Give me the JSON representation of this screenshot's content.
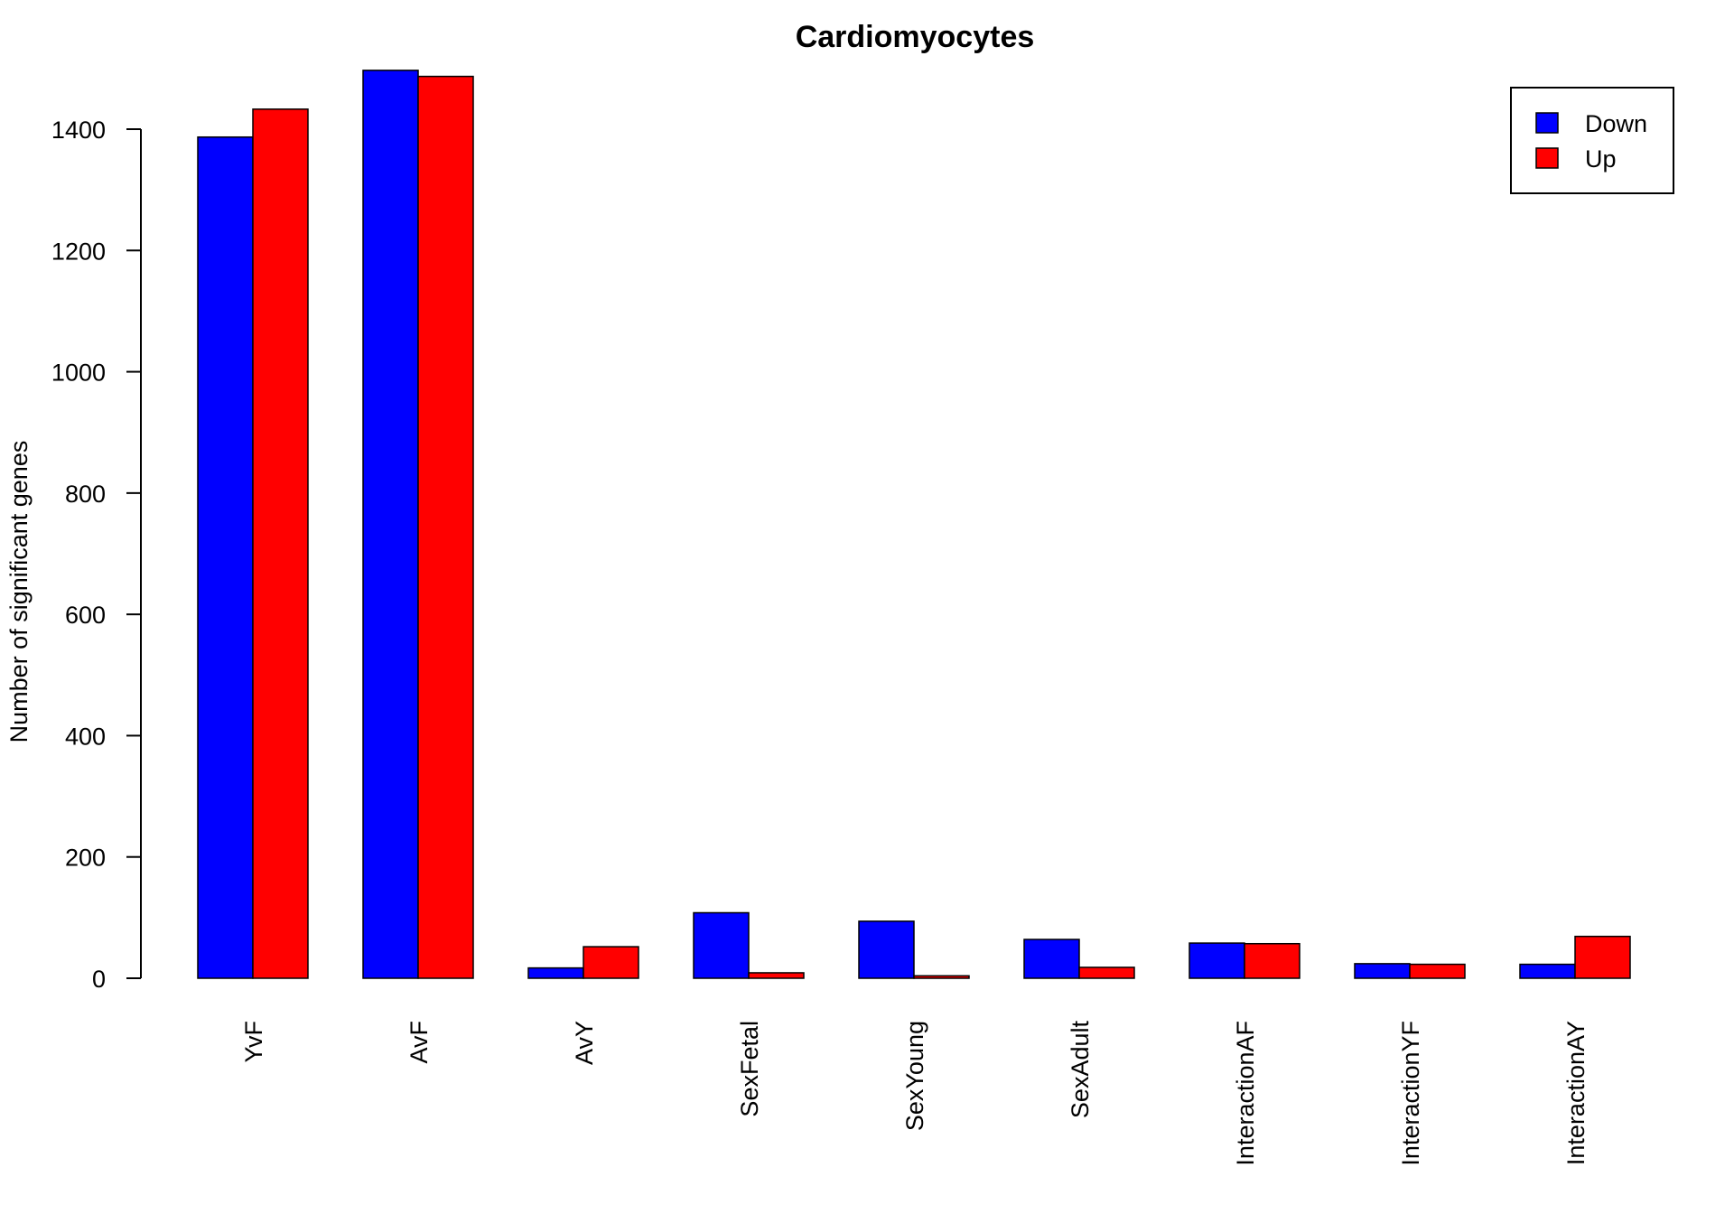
{
  "chart_data": {
    "type": "bar",
    "title": "Cardiomyocytes",
    "xlabel": "",
    "ylabel": "Number of significant genes",
    "categories": [
      "YvF",
      "AvF",
      "AvY",
      "SexFetal",
      "SexYoung",
      "SexAdult",
      "InteractionAF",
      "InteractionYF",
      "InteractionAY"
    ],
    "series": [
      {
        "name": "Down",
        "color": "#0000ff",
        "values": [
          1387,
          1497,
          17,
          108,
          94,
          64,
          58,
          24,
          23
        ]
      },
      {
        "name": "Up",
        "color": "#ff0000",
        "values": [
          1433,
          1487,
          52,
          9,
          4,
          18,
          57,
          23,
          69
        ]
      }
    ],
    "ylim": [
      0,
      1500
    ],
    "yticks": [
      0,
      200,
      400,
      600,
      800,
      1000,
      1200,
      1400
    ],
    "grid": false,
    "legend_position": "top-right"
  }
}
